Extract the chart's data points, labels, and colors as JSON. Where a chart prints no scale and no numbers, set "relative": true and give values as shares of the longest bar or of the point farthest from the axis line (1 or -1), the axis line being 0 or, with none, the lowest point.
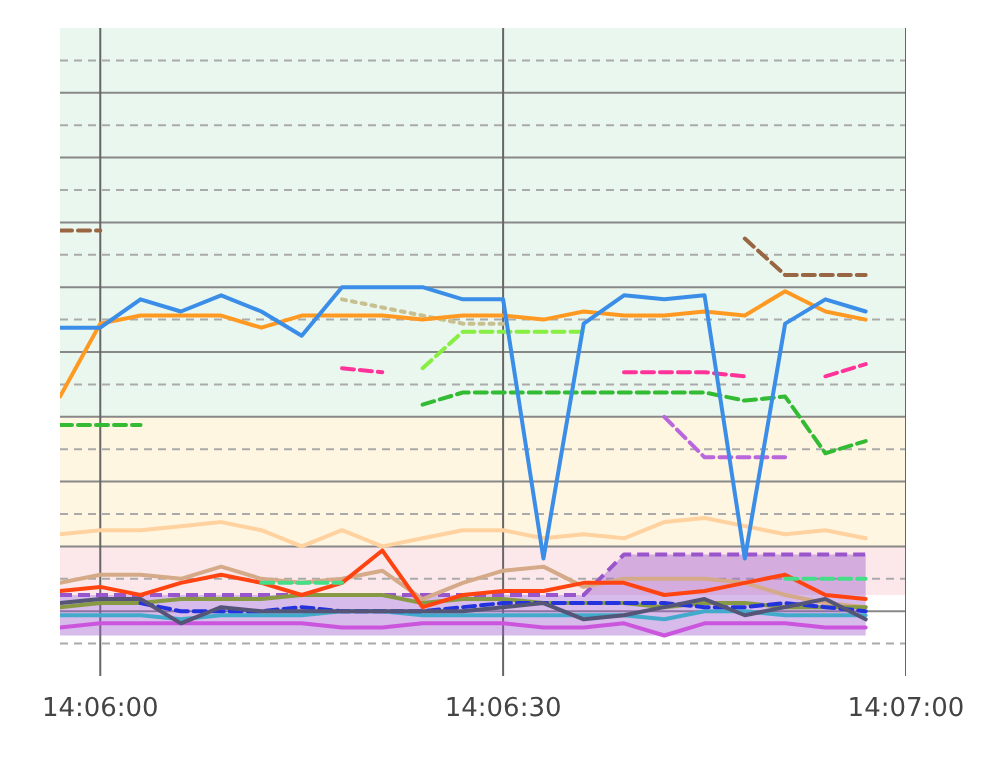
{
  "chart_data": {
    "type": "line",
    "relative": true,
    "grid": true,
    "legend": false,
    "marker": "none",
    "x": [
      14.099167,
      14.1,
      14.100833,
      14.101667,
      14.1025,
      14.103333,
      14.104167,
      14.105,
      14.105833,
      14.106667,
      14.1075,
      14.108333,
      14.109167,
      14.11,
      14.110833,
      14.111667,
      14.1125,
      14.113333,
      14.114167,
      14.115,
      14.115833
    ],
    "xlim": [
      14.099167,
      14.116667
    ],
    "xticks": [
      {
        "value": 14.1,
        "label": "14:06:00"
      },
      {
        "value": 14.108333,
        "label": "14:06:30"
      },
      {
        "value": 14.116667,
        "label": "14:07:00"
      }
    ],
    "bands": [
      {
        "axis": "y",
        "from": 0.54,
        "to": 1.5,
        "label": null,
        "color": "#eaf7ee"
      },
      {
        "axis": "y",
        "from": 0.22,
        "to": 0.54,
        "label": null,
        "color": "#fff6e2"
      },
      {
        "axis": "y",
        "from": 0.1,
        "to": 0.22,
        "label": null,
        "color": "#fce8ea"
      }
    ],
    "series": [
      {
        "type": "area",
        "color": "#9955cc",
        "line_style": "dashed",
        "values": [
          0.1,
          0.1,
          0.1,
          0.1,
          0.1,
          0.1,
          0.1,
          0.1,
          0.1,
          0.1,
          0.1,
          0.1,
          0.1,
          0.1,
          0.2,
          0.2,
          0.2,
          0.2,
          0.2,
          0.2,
          0.2
        ]
      },
      {
        "color": "#ffd2a0",
        "line_style": "solid",
        "values": [
          0.25,
          0.26,
          0.26,
          0.27,
          0.28,
          0.26,
          0.22,
          0.26,
          0.22,
          0.24,
          0.26,
          0.26,
          0.24,
          0.25,
          0.24,
          0.28,
          0.29,
          0.27,
          0.25,
          0.26,
          0.24
        ]
      },
      {
        "color": "#d4aa88",
        "line_style": "solid",
        "values": [
          0.13,
          0.15,
          0.15,
          0.14,
          0.17,
          0.14,
          0.13,
          0.14,
          0.16,
          0.09,
          0.13,
          0.16,
          0.17,
          0.12,
          0.14,
          0.14,
          0.14,
          0.13,
          0.1,
          0.08,
          0.07
        ]
      },
      {
        "color": "#889944",
        "line_style": "solid",
        "values": [
          0.07,
          0.08,
          0.08,
          0.09,
          0.09,
          0.09,
          0.1,
          0.1,
          0.1,
          0.08,
          0.09,
          0.09,
          0.08,
          0.08,
          0.08,
          0.07,
          0.08,
          0.08,
          0.07,
          0.07,
          0.07
        ]
      },
      {
        "color": "#44aacc",
        "line_style": "solid",
        "values": [
          0.05,
          0.05,
          0.05,
          0.04,
          0.05,
          0.05,
          0.05,
          0.06,
          0.06,
          0.05,
          0.05,
          0.05,
          0.05,
          0.05,
          0.05,
          0.04,
          0.06,
          0.06,
          0.05,
          0.05,
          0.05
        ]
      },
      {
        "color": "#cc55dd",
        "line_style": "solid",
        "values": [
          0.02,
          0.03,
          0.03,
          0.03,
          0.03,
          0.03,
          0.03,
          0.02,
          0.02,
          0.03,
          0.03,
          0.03,
          0.02,
          0.02,
          0.03,
          0.0,
          0.03,
          0.03,
          0.03,
          0.02,
          0.02
        ]
      },
      {
        "color": "#2233dd",
        "line_style": "dashed",
        "values": [
          null,
          null,
          0.08,
          0.06,
          0.06,
          0.06,
          0.07,
          0.06,
          0.06,
          0.06,
          0.07,
          0.08,
          0.08,
          0.08,
          0.08,
          0.08,
          0.07,
          0.07,
          0.08,
          0.07,
          0.06
        ]
      },
      {
        "color": "#555577",
        "line_style": "solid",
        "values": [
          0.08,
          0.09,
          0.09,
          0.03,
          0.07,
          0.06,
          0.06,
          0.06,
          0.06,
          0.06,
          0.06,
          0.07,
          0.08,
          0.04,
          0.05,
          0.07,
          0.09,
          0.05,
          0.07,
          0.09,
          0.04
        ]
      },
      {
        "color": "#ff4411",
        "line_style": "solid",
        "values": [
          0.11,
          0.12,
          0.1,
          0.13,
          0.15,
          0.13,
          0.1,
          0.13,
          0.21,
          0.07,
          0.1,
          0.11,
          0.11,
          0.13,
          0.13,
          0.1,
          0.11,
          0.13,
          0.15,
          0.1,
          0.09
        ]
      },
      {
        "color": "#44dd88",
        "line_style": "dashed",
        "values": [
          null,
          null,
          null,
          null,
          null,
          0.13,
          0.13,
          0.13,
          null,
          null,
          null,
          null,
          null,
          null,
          null,
          null,
          null,
          null,
          0.14,
          0.14,
          0.14
        ]
      },
      {
        "color": "#33bb33",
        "line_style": "dashed",
        "values": [
          0.52,
          0.52,
          0.52,
          null,
          null,
          null,
          null,
          null,
          null,
          0.57,
          0.6,
          0.6,
          0.6,
          0.6,
          0.6,
          0.6,
          0.6,
          0.58,
          0.59,
          0.45,
          0.48
        ]
      },
      {
        "color": "#bb66dd",
        "line_style": "dashed",
        "values": [
          null,
          null,
          null,
          null,
          null,
          null,
          null,
          null,
          null,
          null,
          null,
          null,
          null,
          null,
          null,
          0.54,
          0.44,
          0.44,
          0.44,
          null,
          null
        ]
      },
      {
        "color": "#ff3399",
        "line_style": "dashed",
        "values": [
          null,
          null,
          null,
          null,
          null,
          null,
          null,
          0.66,
          0.65,
          null,
          null,
          null,
          null,
          null,
          0.65,
          0.65,
          0.65,
          0.64,
          null,
          0.64,
          0.67
        ]
      },
      {
        "color": "#88ee44",
        "line_style": "dashed",
        "values": [
          null,
          null,
          null,
          null,
          null,
          null,
          null,
          null,
          null,
          0.66,
          0.75,
          0.75,
          0.75,
          0.75,
          null,
          null,
          null,
          null,
          null,
          null,
          null
        ]
      },
      {
        "color": "#c8c090",
        "line_style": "dotted",
        "values": [
          null,
          null,
          null,
          null,
          null,
          null,
          null,
          0.83,
          0.81,
          0.79,
          0.77,
          0.77,
          null,
          null,
          null,
          null,
          null,
          null,
          null,
          null,
          null
        ]
      },
      {
        "color": "#996644",
        "line_style": "dashed",
        "values": [
          1.0,
          1.0,
          null,
          null,
          null,
          null,
          null,
          null,
          null,
          null,
          null,
          null,
          null,
          null,
          null,
          null,
          null,
          0.98,
          0.89,
          0.89,
          0.89
        ]
      },
      {
        "color": "#ff9922",
        "line_style": "solid",
        "values": [
          0.59,
          0.77,
          0.79,
          0.79,
          0.79,
          0.76,
          0.79,
          0.79,
          0.79,
          0.78,
          0.79,
          0.79,
          0.78,
          0.8,
          0.79,
          0.79,
          0.8,
          0.79,
          0.85,
          0.8,
          0.78
        ]
      },
      {
        "color": "#3b8ee8",
        "line_style": "solid",
        "values": [
          0.76,
          0.76,
          0.83,
          0.8,
          0.84,
          0.8,
          0.74,
          0.86,
          0.86,
          0.86,
          0.83,
          0.83,
          0.19,
          0.77,
          0.84,
          0.83,
          0.84,
          0.19,
          0.77,
          0.83,
          0.8
        ]
      }
    ]
  }
}
